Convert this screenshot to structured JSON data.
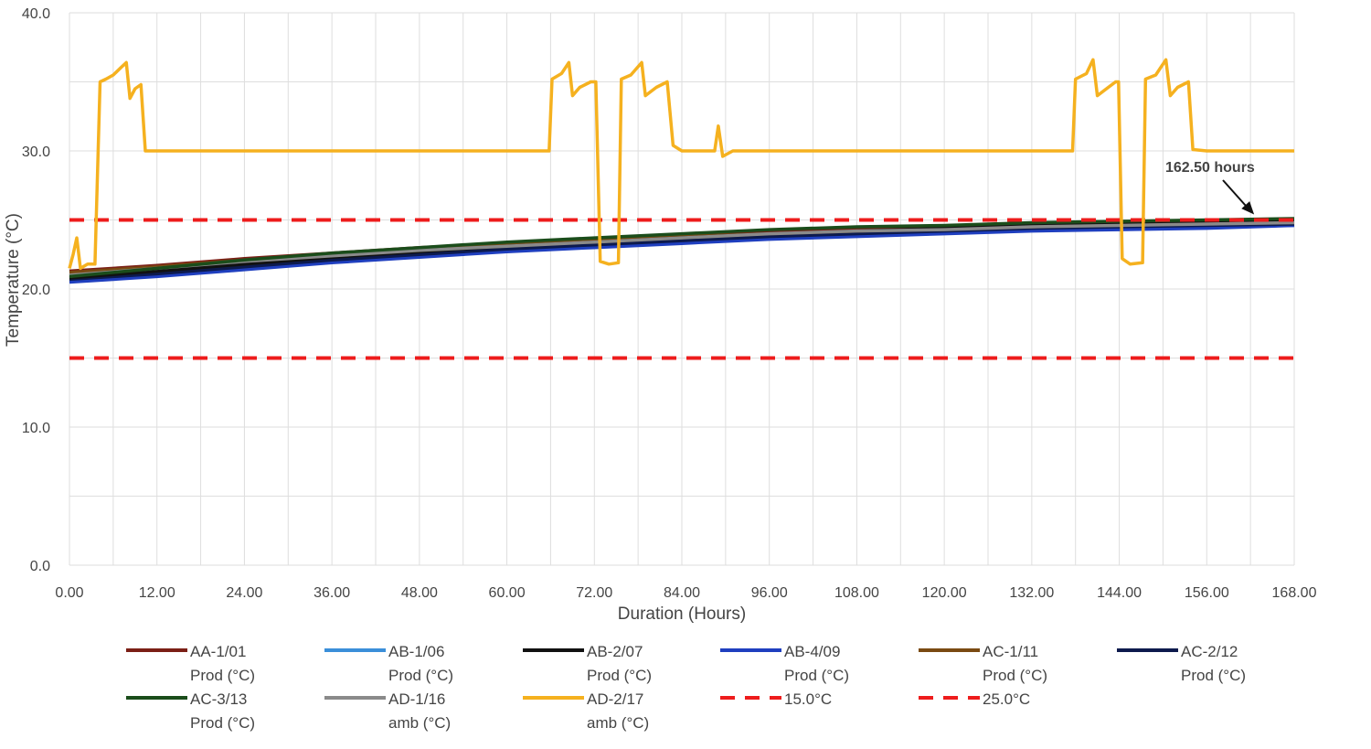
{
  "chart_data": {
    "type": "line",
    "title": "",
    "xlabel": "Duration (Hours)",
    "ylabel": "Temperature (°C)",
    "xlim": [
      0,
      168
    ],
    "ylim": [
      0,
      40
    ],
    "x_ticks": [
      "0.00",
      "12.00",
      "24.00",
      "36.00",
      "48.00",
      "60.00",
      "72.00",
      "84.00",
      "96.00",
      "108.00",
      "120.00",
      "132.00",
      "144.00",
      "156.00",
      "168.00"
    ],
    "y_ticks": [
      "0.0",
      "10.0",
      "20.0",
      "30.0",
      "40.0"
    ],
    "grid": "vertical-and-horizontal",
    "legend_position": "bottom",
    "annotation": {
      "text": "162.50 hours",
      "x": 162.5,
      "y": 25.0
    },
    "series": [
      {
        "name": "AA-1/01 Prod (°C)",
        "line1": "AA-1/01",
        "line2": "Prod (°C)",
        "color": "#7b1f16",
        "dash": false,
        "points": [
          [
            0,
            21.3
          ],
          [
            12,
            21.7
          ],
          [
            24,
            22.2
          ],
          [
            36,
            22.6
          ],
          [
            48,
            23.0
          ],
          [
            60,
            23.3
          ],
          [
            72,
            23.6
          ],
          [
            84,
            23.9
          ],
          [
            96,
            24.1
          ],
          [
            108,
            24.3
          ],
          [
            120,
            24.4
          ],
          [
            132,
            24.6
          ],
          [
            144,
            24.7
          ],
          [
            156,
            24.8
          ],
          [
            168,
            24.9
          ]
        ]
      },
      {
        "name": "AB-1/06 Prod (°C)",
        "line1": "AB-1/06",
        "line2": "Prod (°C)",
        "color": "#3b8fd9",
        "dash": false,
        "points": [
          [
            0,
            20.6
          ],
          [
            12,
            21.0
          ],
          [
            24,
            21.5
          ],
          [
            36,
            22.0
          ],
          [
            48,
            22.4
          ],
          [
            60,
            22.8
          ],
          [
            72,
            23.1
          ],
          [
            84,
            23.4
          ],
          [
            96,
            23.7
          ],
          [
            108,
            23.9
          ],
          [
            120,
            24.1
          ],
          [
            132,
            24.3
          ],
          [
            144,
            24.4
          ],
          [
            156,
            24.5
          ],
          [
            168,
            24.6
          ]
        ]
      },
      {
        "name": "AB-2/07 Prod (°C)",
        "line1": "AB-2/07",
        "line2": "Prod (°C)",
        "color": "#111111",
        "dash": false,
        "points": [
          [
            0,
            20.8
          ],
          [
            12,
            21.3
          ],
          [
            24,
            21.8
          ],
          [
            36,
            22.3
          ],
          [
            48,
            22.7
          ],
          [
            60,
            23.1
          ],
          [
            72,
            23.4
          ],
          [
            84,
            23.7
          ],
          [
            96,
            24.0
          ],
          [
            108,
            24.2
          ],
          [
            120,
            24.4
          ],
          [
            132,
            24.6
          ],
          [
            144,
            24.7
          ],
          [
            156,
            24.8
          ],
          [
            168,
            24.9
          ]
        ]
      },
      {
        "name": "AB-4/09 Prod (°C)",
        "line1": "AB-4/09",
        "line2": "Prod (°C)",
        "color": "#1f3fbf",
        "dash": false,
        "points": [
          [
            0,
            20.5
          ],
          [
            12,
            20.9
          ],
          [
            24,
            21.4
          ],
          [
            36,
            21.9
          ],
          [
            48,
            22.3
          ],
          [
            60,
            22.7
          ],
          [
            72,
            23.0
          ],
          [
            84,
            23.3
          ],
          [
            96,
            23.6
          ],
          [
            108,
            23.8
          ],
          [
            120,
            24.0
          ],
          [
            132,
            24.2
          ],
          [
            144,
            24.3
          ],
          [
            156,
            24.4
          ],
          [
            168,
            24.6
          ]
        ]
      },
      {
        "name": "AC-1/11 Prod (°C)",
        "line1": "AC-1/11",
        "line2": "Prod (°C)",
        "color": "#7a4a12",
        "dash": false,
        "points": [
          [
            0,
            21.2
          ],
          [
            12,
            21.6
          ],
          [
            24,
            22.1
          ],
          [
            36,
            22.5
          ],
          [
            48,
            22.9
          ],
          [
            60,
            23.2
          ],
          [
            72,
            23.5
          ],
          [
            84,
            23.8
          ],
          [
            96,
            24.0
          ],
          [
            108,
            24.2
          ],
          [
            120,
            24.4
          ],
          [
            132,
            24.5
          ],
          [
            144,
            24.7
          ],
          [
            156,
            24.8
          ],
          [
            168,
            24.9
          ]
        ]
      },
      {
        "name": "AC-2/12 Prod (°C)",
        "line1": "AC-2/12",
        "line2": "Prod (°C)",
        "color": "#0d1a4d",
        "dash": false,
        "points": [
          [
            0,
            20.7
          ],
          [
            12,
            21.1
          ],
          [
            24,
            21.6
          ],
          [
            36,
            22.1
          ],
          [
            48,
            22.5
          ],
          [
            60,
            22.9
          ],
          [
            72,
            23.2
          ],
          [
            84,
            23.5
          ],
          [
            96,
            23.8
          ],
          [
            108,
            24.0
          ],
          [
            120,
            24.2
          ],
          [
            132,
            24.4
          ],
          [
            144,
            24.5
          ],
          [
            156,
            24.6
          ],
          [
            168,
            24.7
          ]
        ]
      },
      {
        "name": "AC-3/13 Prod (°C)",
        "line1": "AC-3/13",
        "line2": "Prod (°C)",
        "color": "#1b4d1b",
        "dash": false,
        "points": [
          [
            0,
            20.9
          ],
          [
            12,
            21.5
          ],
          [
            24,
            22.1
          ],
          [
            36,
            22.6
          ],
          [
            48,
            23.0
          ],
          [
            60,
            23.4
          ],
          [
            72,
            23.7
          ],
          [
            84,
            24.0
          ],
          [
            96,
            24.3
          ],
          [
            108,
            24.5
          ],
          [
            120,
            24.6
          ],
          [
            132,
            24.8
          ],
          [
            144,
            24.9
          ],
          [
            156,
            25.0
          ],
          [
            168,
            25.1
          ]
        ]
      },
      {
        "name": "AD-1/16 amb (°C)",
        "line1": "AD-1/16",
        "line2": "amb (°C)",
        "color": "#8a8a8a",
        "dash": false,
        "points": [
          [
            0,
            21.0
          ],
          [
            12,
            21.5
          ],
          [
            24,
            22.0
          ],
          [
            36,
            22.4
          ],
          [
            48,
            22.8
          ],
          [
            60,
            23.1
          ],
          [
            72,
            23.4
          ],
          [
            84,
            23.7
          ],
          [
            96,
            24.0
          ],
          [
            108,
            24.2
          ],
          [
            120,
            24.3
          ],
          [
            132,
            24.5
          ],
          [
            144,
            24.6
          ],
          [
            156,
            24.7
          ],
          [
            168,
            24.8
          ]
        ]
      },
      {
        "name": "AD-2/17 amb (°C)",
        "line1": "AD-2/17",
        "line2": "amb (°C)",
        "color": "#f5b11f",
        "dash": false,
        "points": [
          [
            0,
            21.5
          ],
          [
            0.5,
            22.5
          ],
          [
            1.0,
            23.7
          ],
          [
            1.5,
            21.5
          ],
          [
            2.5,
            21.8
          ],
          [
            3.5,
            21.8
          ],
          [
            4.2,
            35.0
          ],
          [
            5.0,
            35.2
          ],
          [
            6.0,
            35.5
          ],
          [
            7.0,
            36.0
          ],
          [
            7.8,
            36.4
          ],
          [
            8.3,
            33.8
          ],
          [
            9.0,
            34.5
          ],
          [
            9.8,
            34.8
          ],
          [
            10.4,
            30.0
          ],
          [
            12,
            30.0
          ],
          [
            36,
            30.0
          ],
          [
            48,
            30.0
          ],
          [
            60,
            30.0
          ],
          [
            65.8,
            30.0
          ],
          [
            66.2,
            35.2
          ],
          [
            67.5,
            35.6
          ],
          [
            68.5,
            36.4
          ],
          [
            69.0,
            34.0
          ],
          [
            70.0,
            34.6
          ],
          [
            71.5,
            35.0
          ],
          [
            72.2,
            35.0
          ],
          [
            72.8,
            22.0
          ],
          [
            74,
            21.8
          ],
          [
            75.3,
            21.9
          ],
          [
            75.7,
            35.2
          ],
          [
            77.0,
            35.5
          ],
          [
            78.5,
            36.4
          ],
          [
            79.0,
            34.0
          ],
          [
            80.5,
            34.6
          ],
          [
            82.0,
            35.0
          ],
          [
            82.8,
            30.4
          ],
          [
            84.0,
            30.0
          ],
          [
            88.5,
            30.0
          ],
          [
            89.0,
            31.8
          ],
          [
            89.6,
            29.6
          ],
          [
            91.0,
            30.0
          ],
          [
            96,
            30.0
          ],
          [
            108,
            30.0
          ],
          [
            120,
            30.0
          ],
          [
            137.6,
            30.0
          ],
          [
            138.0,
            35.2
          ],
          [
            139.5,
            35.6
          ],
          [
            140.4,
            36.6
          ],
          [
            141.0,
            34.0
          ],
          [
            142.5,
            34.6
          ],
          [
            143.5,
            35.0
          ],
          [
            143.9,
            35.0
          ],
          [
            144.4,
            22.2
          ],
          [
            145.5,
            21.8
          ],
          [
            147.2,
            21.9
          ],
          [
            147.6,
            35.2
          ],
          [
            149.0,
            35.5
          ],
          [
            150.4,
            36.6
          ],
          [
            151.0,
            34.0
          ],
          [
            152.0,
            34.6
          ],
          [
            153.5,
            35.0
          ],
          [
            154.1,
            30.1
          ],
          [
            156,
            30.0
          ],
          [
            168,
            30.0
          ]
        ]
      },
      {
        "name": "15.0°C",
        "line1": "15.0°C",
        "line2": "",
        "color": "#ee1c1c",
        "dash": true,
        "points": [
          [
            0,
            15.0
          ],
          [
            168,
            15.0
          ]
        ]
      },
      {
        "name": "25.0°C",
        "line1": "25.0°C",
        "line2": "",
        "color": "#ee1c1c",
        "dash": true,
        "points": [
          [
            0,
            25.0
          ],
          [
            168,
            25.0
          ]
        ]
      }
    ]
  }
}
